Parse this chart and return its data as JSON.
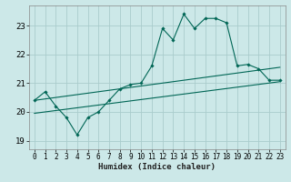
{
  "title": "",
  "xlabel": "Humidex (Indice chaleur)",
  "background_color": "#cce8e8",
  "grid_color": "#aacccc",
  "line_color": "#006655",
  "xlim": [
    -0.5,
    23.5
  ],
  "ylim": [
    18.7,
    23.7
  ],
  "yticks": [
    19,
    20,
    21,
    22,
    23
  ],
  "xticks": [
    0,
    1,
    2,
    3,
    4,
    5,
    6,
    7,
    8,
    9,
    10,
    11,
    12,
    13,
    14,
    15,
    16,
    17,
    18,
    19,
    20,
    21,
    22,
    23
  ],
  "main_series": [
    [
      0,
      20.4
    ],
    [
      1,
      20.7
    ],
    [
      2,
      20.2
    ],
    [
      3,
      19.8
    ],
    [
      4,
      19.2
    ],
    [
      5,
      19.8
    ],
    [
      6,
      20.0
    ],
    [
      7,
      20.4
    ],
    [
      8,
      20.8
    ],
    [
      9,
      20.95
    ],
    [
      10,
      21.0
    ],
    [
      11,
      21.6
    ],
    [
      12,
      22.9
    ],
    [
      13,
      22.5
    ],
    [
      14,
      23.4
    ],
    [
      15,
      22.9
    ],
    [
      16,
      23.25
    ],
    [
      17,
      23.25
    ],
    [
      18,
      23.1
    ],
    [
      19,
      21.6
    ],
    [
      20,
      21.65
    ],
    [
      21,
      21.5
    ],
    [
      22,
      21.1
    ],
    [
      23,
      21.1
    ]
  ],
  "linear1": [
    [
      0,
      20.4
    ],
    [
      23,
      21.55
    ]
  ],
  "linear2": [
    [
      0,
      19.95
    ],
    [
      23,
      21.05
    ]
  ]
}
